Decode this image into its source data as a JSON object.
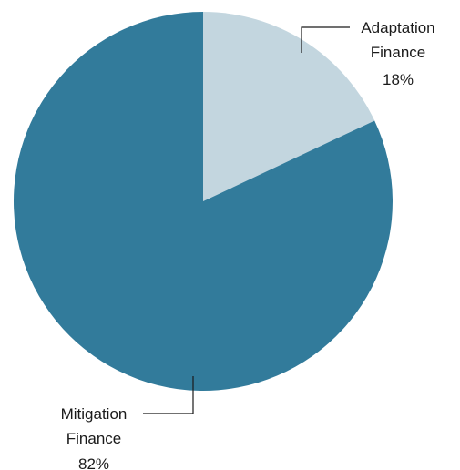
{
  "chart_data": {
    "type": "pie",
    "title": "",
    "slices": [
      {
        "name": "Adaptation Finance",
        "value": 18,
        "label_lines": [
          "Adaptation",
          "Finance",
          "18%"
        ],
        "color": "#c3d6df"
      },
      {
        "name": "Mitigation Finance",
        "value": 82,
        "label_lines": [
          "Mitigation",
          "Finance",
          "82%"
        ],
        "color": "#327b9b"
      }
    ],
    "start_angle": "12 o'clock",
    "direction": "clockwise",
    "legend": "none"
  }
}
